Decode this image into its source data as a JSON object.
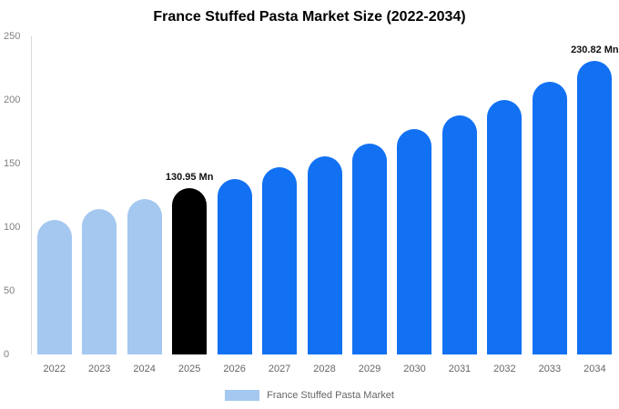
{
  "title": "France Stuffed Pasta Market Size (2022-2034)",
  "legend": {
    "label": "France Stuffed Pasta Market",
    "swatch_color": "#a4c8f0"
  },
  "chart_data": {
    "type": "bar",
    "title": "France Stuffed Pasta Market Size (2022-2034)",
    "categories": [
      "2022",
      "2023",
      "2024",
      "2025",
      "2026",
      "2027",
      "2028",
      "2029",
      "2030",
      "2031",
      "2032",
      "2033",
      "2034"
    ],
    "values": [
      106,
      114,
      122,
      130.95,
      138,
      147,
      156,
      166,
      177,
      188,
      200,
      214,
      230.82
    ],
    "unit": "Mn",
    "xlabel": "",
    "ylabel": "",
    "ylim": [
      0,
      250
    ],
    "yticks": [
      0,
      50,
      100,
      150,
      200,
      250
    ],
    "bar_colors": [
      "#a4c8f0",
      "#a4c8f0",
      "#a4c8f0",
      "#000000",
      "#1271f3",
      "#1271f3",
      "#1271f3",
      "#1271f3",
      "#1271f3",
      "#1271f3",
      "#1271f3",
      "#1271f3",
      "#1271f3"
    ],
    "annotations": [
      {
        "category": "2025",
        "text": "130.95 Mn"
      },
      {
        "category": "2034",
        "text": "230.82 Mn"
      }
    ],
    "legend_entries": [
      "France Stuffed Pasta Market"
    ],
    "grid": false,
    "legend_position": "bottom"
  }
}
